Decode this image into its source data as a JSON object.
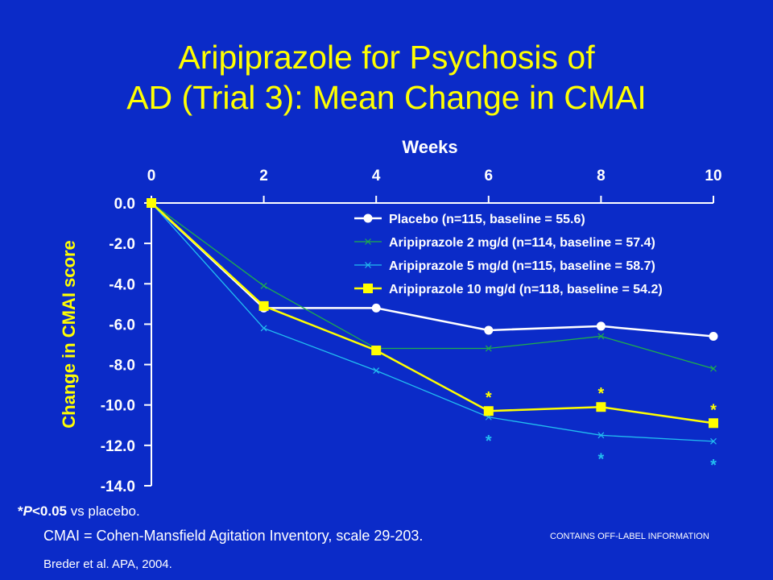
{
  "title_line1": "Aripiprazole for Psychosis of",
  "title_line2": "AD (Trial 3): Mean Change in CMAI",
  "footnotes": {
    "sig_star": "*",
    "sig_p": "P",
    "sig_value": "<0.05",
    "sig_rest": " vs placebo.",
    "cmai_def": "CMAI = Cohen-Mansfield Agitation Inventory, scale 29-203.",
    "citation": "Breder et al. APA, 2004.",
    "off_label": "CONTAINS OFF-LABEL INFORMATION"
  },
  "colors": {
    "background": "#0b2bc8",
    "title": "#ffff00",
    "axis_text": "#ffffff",
    "placebo": "#ffffff",
    "ari2": "#1fae4a",
    "ari5": "#22bdf0",
    "ari10": "#ffff00"
  },
  "chart_data": {
    "type": "line",
    "xlabel": "Weeks",
    "ylabel": "Change in CMAI score",
    "x_axis_position": "top",
    "x": [
      0,
      2,
      4,
      6,
      8,
      10
    ],
    "xticks": [
      "0",
      "2",
      "4",
      "6",
      "8",
      "10"
    ],
    "xlim": [
      0,
      10
    ],
    "ylim": [
      -14,
      0
    ],
    "yticks": [
      "0.0",
      "-2.0",
      "-4.0",
      "-6.0",
      "-8.0",
      "-10.0",
      "-12.0",
      "-14.0"
    ],
    "grid": false,
    "legend_position": "top-right",
    "series": [
      {
        "name": "Placebo (n=115, baseline = 55.6)",
        "marker": "circle",
        "color": "#ffffff",
        "values": [
          0.0,
          -5.2,
          -5.2,
          -6.3,
          -6.1,
          -6.6
        ]
      },
      {
        "name": "Aripiprazole 2 mg/d (n=114, baseline = 57.4)",
        "marker": "x",
        "color": "#1fae4a",
        "values": [
          0.0,
          -4.1,
          -7.2,
          -7.2,
          -6.6,
          -8.2
        ]
      },
      {
        "name": "Aripiprazole 5 mg/d (n=115, baseline = 58.7)",
        "marker": "x",
        "color": "#22bdf0",
        "values": [
          0.0,
          -6.2,
          -8.3,
          -10.6,
          -11.5,
          -11.8
        ]
      },
      {
        "name": "Aripiprazole 10 mg/d (n=118, baseline = 54.2)",
        "marker": "square",
        "color": "#ffff00",
        "values": [
          0.0,
          -5.1,
          -7.3,
          -10.3,
          -10.1,
          -10.9
        ]
      }
    ],
    "annotations": [
      {
        "text": "*",
        "series": 3,
        "x": 6,
        "position": "above",
        "color": "#ffff00"
      },
      {
        "text": "*",
        "series": 3,
        "x": 8,
        "position": "above",
        "color": "#ffff00"
      },
      {
        "text": "*",
        "series": 3,
        "x": 10,
        "position": "above",
        "color": "#ffff00"
      },
      {
        "text": "*",
        "series": 2,
        "x": 6,
        "position": "below",
        "color": "#22bdf0"
      },
      {
        "text": "*",
        "series": 2,
        "x": 8,
        "position": "below",
        "color": "#22bdf0"
      },
      {
        "text": "*",
        "series": 2,
        "x": 10,
        "position": "below",
        "color": "#22bdf0"
      }
    ]
  }
}
